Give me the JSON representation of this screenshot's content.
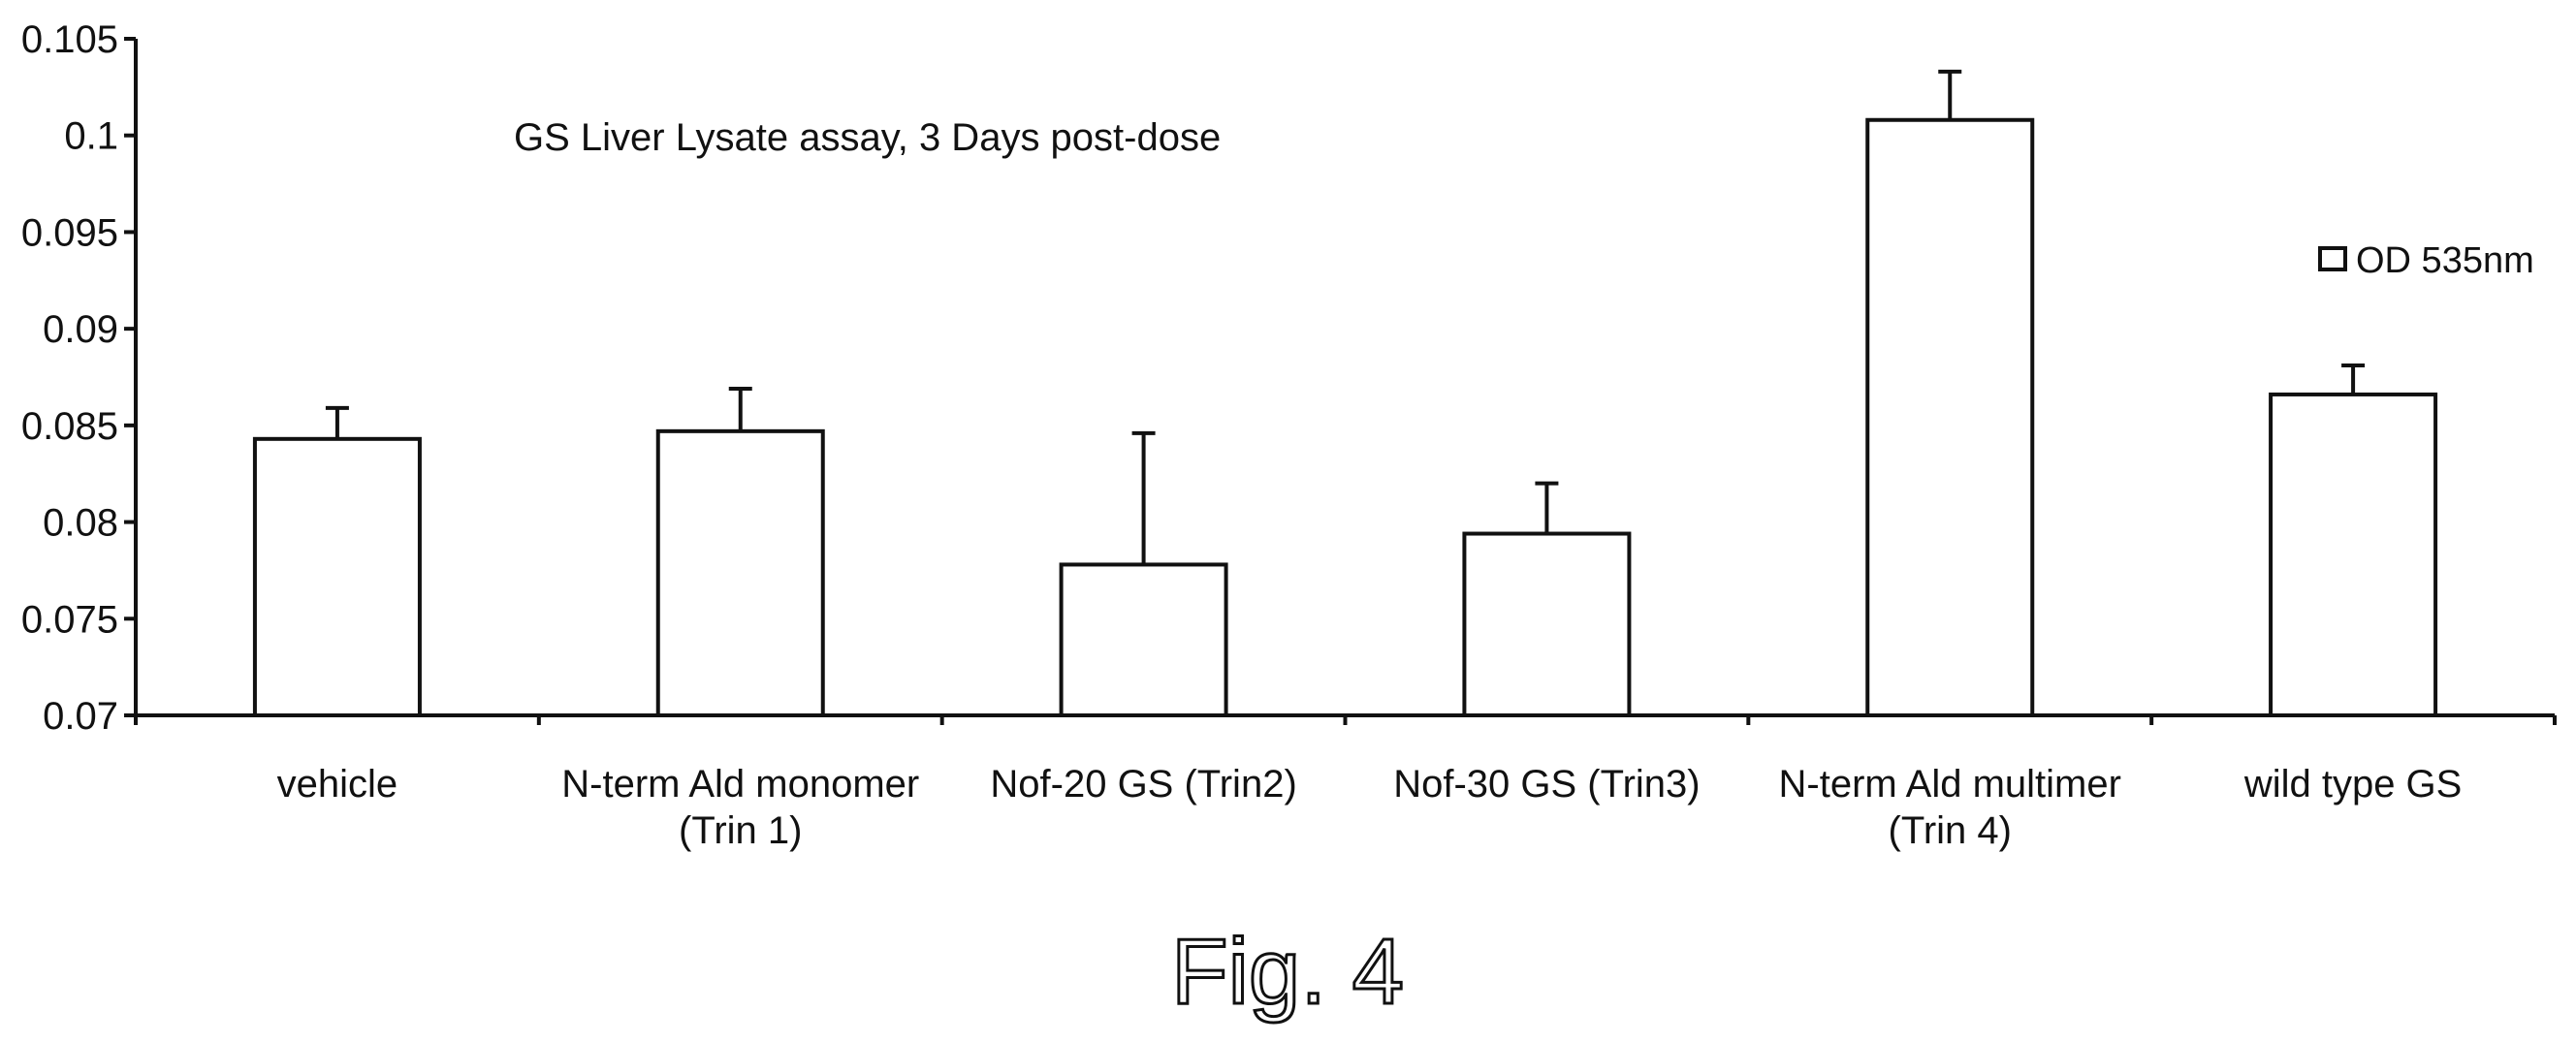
{
  "chart_data": {
    "type": "bar",
    "title": "GS Liver Lysate assay, 3 Days post-dose",
    "categories": [
      [
        "vehicle"
      ],
      [
        "N-term Ald monomer",
        "(Trin 1)"
      ],
      [
        "Nof-20 GS (Trin2)"
      ],
      [
        "Nof-30 GS (Trin3)"
      ],
      [
        "N-term Ald multimer",
        "(Trin 4)"
      ],
      [
        "wild type GS"
      ]
    ],
    "series": [
      {
        "name": "OD 535nm",
        "values": [
          0.0843,
          0.0847,
          0.0778,
          0.0794,
          0.1008,
          0.0866
        ],
        "errors": [
          0.0016,
          0.0022,
          0.0068,
          0.0026,
          0.0025,
          0.0015
        ]
      }
    ],
    "ylim": [
      0.07,
      0.105
    ],
    "yticks": [
      "0.07",
      "0.075",
      "0.08",
      "0.085",
      "0.09",
      "0.095",
      "0.1",
      "0.105"
    ],
    "xlabel": "",
    "ylabel": "",
    "legend_position": "right",
    "grid": false
  },
  "caption": "Fig. 4"
}
